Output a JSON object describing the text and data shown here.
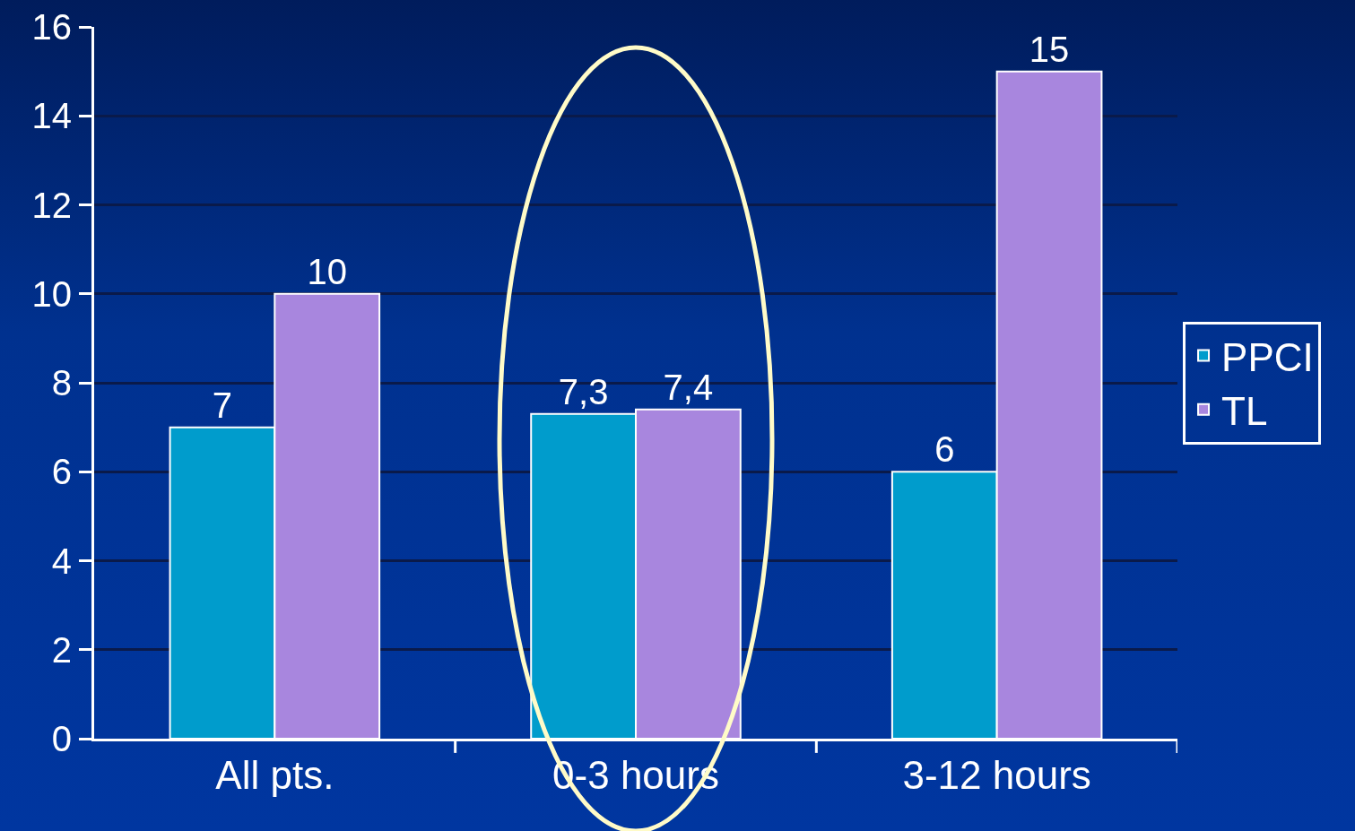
{
  "chart_data": {
    "type": "bar",
    "categories": [
      "All pts.",
      "0-3 hours",
      "3-12 hours"
    ],
    "series": [
      {
        "name": "PPCI",
        "color": "#009ccc",
        "values": [
          7,
          7.3,
          6
        ],
        "value_labels": [
          "7",
          "7,3",
          "6"
        ]
      },
      {
        "name": "TL",
        "color": "#a886de",
        "values": [
          10,
          7.4,
          15
        ],
        "value_labels": [
          "10",
          "7,4",
          "15"
        ]
      }
    ],
    "ylim": [
      0,
      16
    ],
    "yticks": [
      0,
      2,
      4,
      6,
      8,
      10,
      12,
      14,
      16
    ],
    "grid": "y",
    "legend": "right"
  }
}
